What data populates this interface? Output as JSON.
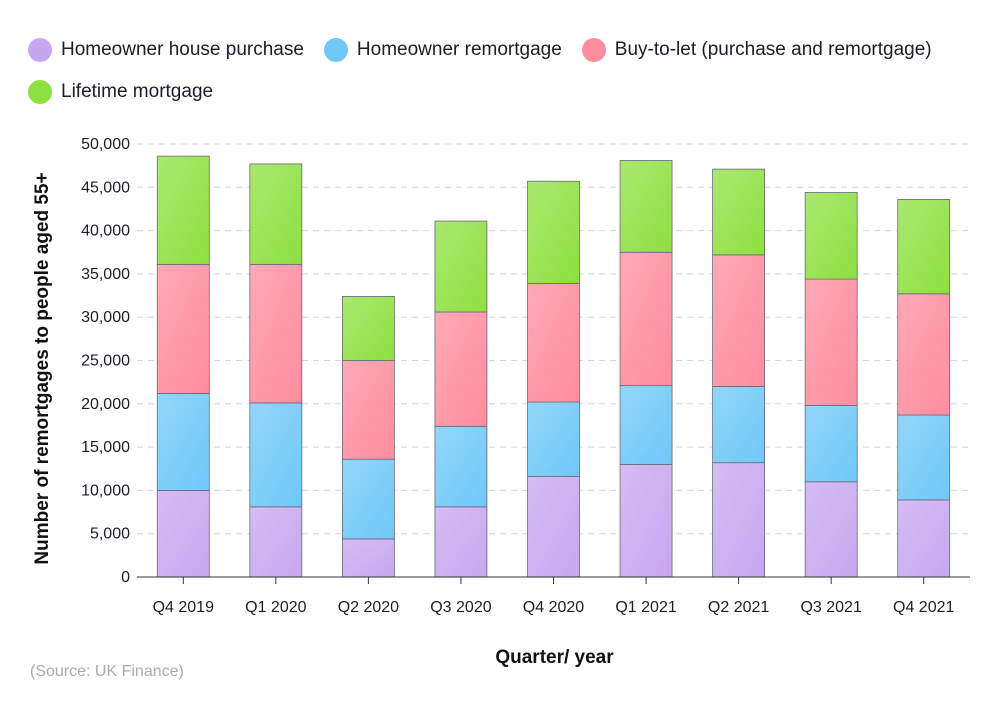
{
  "chart_data": {
    "type": "bar",
    "stacked": true,
    "categories": [
      "Q4 2019",
      "Q1 2020",
      "Q2 2020",
      "Q3 2020",
      "Q4 2020",
      "Q1 2021",
      "Q2 2021",
      "Q3 2021",
      "Q4 2021"
    ],
    "series": [
      {
        "name": "Homeowner house purchase",
        "color": "#c7a7ef",
        "values": [
          10000,
          8100,
          4400,
          8100,
          11600,
          13000,
          13200,
          11000,
          8900
        ]
      },
      {
        "name": "Homeowner remortgage",
        "color": "#6fc8f7",
        "values": [
          11200,
          12000,
          9200,
          9300,
          8600,
          9100,
          8800,
          8800,
          9800
        ]
      },
      {
        "name": "Buy-to-let (purchase and remortgage)",
        "color": "#ff8c9f",
        "values": [
          14900,
          16000,
          11400,
          13200,
          13700,
          15400,
          15200,
          14600,
          14000
        ]
      },
      {
        "name": "Lifetime mortgage",
        "color": "#8ee040",
        "values": [
          12500,
          11600,
          7400,
          10500,
          11800,
          10600,
          9900,
          10000,
          10900
        ]
      }
    ],
    "xlabel": "Quarter/ year",
    "ylabel": "Number of remortgages to people aged 55+",
    "ylim": [
      0,
      50000
    ],
    "yticks": [
      0,
      5000,
      10000,
      15000,
      20000,
      25000,
      30000,
      35000,
      40000,
      45000,
      50000
    ],
    "ytick_labels": [
      "0",
      "5,000",
      "10,000",
      "15,000",
      "20,000",
      "25,000",
      "30,000",
      "35,000",
      "40,000",
      "45,000",
      "50,000"
    ],
    "grid": true,
    "legend_position": "top-left"
  },
  "footer": {
    "source": "(Source: UK Finance)"
  }
}
